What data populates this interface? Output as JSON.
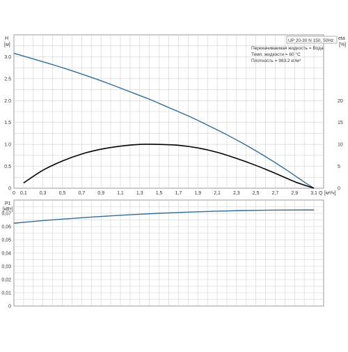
{
  "header": {
    "model": "UP 20-30 N 150, 50Hz",
    "eta_label": "eta",
    "eta_unit": "[%]"
  },
  "info": {
    "line1": "Перекачиваемая жидкость = Вода",
    "line2": "Темп. жидкости = 60 °C",
    "line3": "Плотность = 983.2 кг/м³"
  },
  "colors": {
    "head_curve": "#2f6d9c",
    "eta_curve": "#000000",
    "power_curve": "#2f6d9c",
    "grid": "#d0d0d0"
  },
  "chart_data": [
    {
      "type": "line",
      "ylabel": "H",
      "yunit": "[м]",
      "xlabel": "Q",
      "xunit": "[м³/ч]",
      "xlim": [
        0,
        3.2
      ],
      "ylim": [
        0,
        3.5
      ],
      "y2label": "eta",
      "y2unit": "[%]",
      "y2lim": [
        0,
        35
      ],
      "x_ticks": [
        "0",
        "0,1",
        "0,3",
        "0,5",
        "0,7",
        "0,9",
        "1,1",
        "1,3",
        "1,5",
        "1,7",
        "1,9",
        "2,1",
        "2,3",
        "2,5",
        "2,7",
        "2,9",
        "3,1"
      ],
      "y_ticks": [
        "0",
        "0.5",
        "1.0",
        "1.5",
        "2.0",
        "2.5",
        "3.0"
      ],
      "y2_ticks": [
        "0",
        "5",
        "10",
        "15",
        "20"
      ],
      "grid": true,
      "series": [
        {
          "axis": "left",
          "x": [
            0,
            0.2,
            0.4,
            0.6,
            0.8,
            1.0,
            1.2,
            1.4,
            1.6,
            1.8,
            2.0,
            2.2,
            2.4,
            2.6,
            2.8,
            3.0,
            3.1
          ],
          "y": [
            3.08,
            2.95,
            2.82,
            2.68,
            2.53,
            2.37,
            2.2,
            2.03,
            1.84,
            1.65,
            1.44,
            1.22,
            0.98,
            0.72,
            0.44,
            0.14,
            0.0
          ]
        },
        {
          "axis": "right",
          "x": [
            0.1,
            0.3,
            0.5,
            0.7,
            0.9,
            1.1,
            1.3,
            1.5,
            1.7,
            1.9,
            2.1,
            2.3,
            2.5,
            2.7,
            2.9,
            3.1
          ],
          "y": [
            1.2,
            4.1,
            6.2,
            7.8,
            8.9,
            9.6,
            10.0,
            10.0,
            9.8,
            9.2,
            8.2,
            6.8,
            5.2,
            3.4,
            1.5,
            0.0
          ]
        }
      ]
    },
    {
      "type": "line",
      "ylabel": "P1",
      "yunit": "[кВт]",
      "xlim": [
        0,
        3.2
      ],
      "ylim": [
        0,
        0.08
      ],
      "y_ticks": [
        "0",
        "0,01",
        "0,02",
        "0,03",
        "0,04",
        "0,05",
        "0,06",
        "0,07"
      ],
      "grid": true,
      "series": [
        {
          "x": [
            0,
            0.3,
            0.6,
            0.9,
            1.2,
            1.5,
            1.8,
            2.1,
            2.4,
            2.7,
            3.0,
            3.1
          ],
          "y": [
            0.0625,
            0.0645,
            0.0661,
            0.0676,
            0.0689,
            0.07,
            0.0709,
            0.0716,
            0.0721,
            0.0724,
            0.0725,
            0.0725
          ]
        }
      ]
    }
  ]
}
